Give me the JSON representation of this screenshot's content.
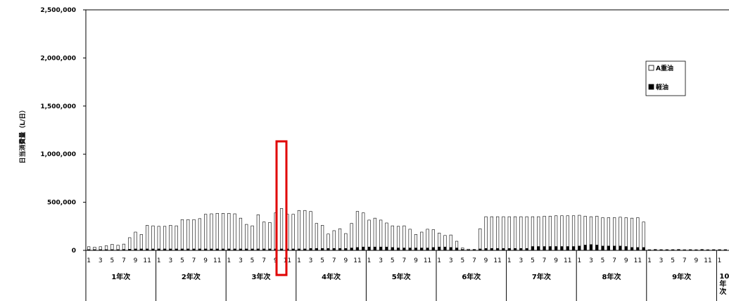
{
  "chart_data": {
    "type": "bar",
    "ylabel": "日当消費量（L/日）",
    "ylim": [
      0,
      2500000
    ],
    "yticks": [
      0,
      500000,
      1000000,
      1500000,
      2000000,
      2500000
    ],
    "ytick_labels": [
      "0",
      "500,000",
      "1,000,000",
      "1,500,000",
      "2,000,000",
      "2,500,000"
    ],
    "grid": false,
    "stacked": true,
    "legend_position": "right",
    "month_labels": [
      "1",
      "3",
      "5",
      "7",
      "9",
      "11"
    ],
    "groups": [
      "1年次",
      "2年次",
      "3年次",
      "4年次",
      "5年次",
      "6年次",
      "7年次",
      "8年次",
      "9年次",
      "10年次"
    ],
    "series": [
      {
        "name": "A重油",
        "fill": "#ffffff",
        "values": [
          30000,
          25000,
          30000,
          40000,
          55000,
          45000,
          55000,
          120000,
          175000,
          150000,
          245000,
          240000,
          235000,
          235000,
          245000,
          240000,
          305000,
          305000,
          305000,
          315000,
          360000,
          365000,
          370000,
          370000,
          370000,
          365000,
          320000,
          255000,
          240000,
          355000,
          280000,
          275000,
          375000,
          420000,
          360000,
          360000,
          400000,
          400000,
          385000,
          260000,
          240000,
          150000,
          185000,
          205000,
          155000,
          255000,
          375000,
          355000,
          280000,
          300000,
          280000,
          250000,
          225000,
          225000,
          230000,
          195000,
          140000,
          165000,
          195000,
          185000,
          145000,
          120000,
          130000,
          70000,
          15000,
          8000,
          5000,
          210000,
          330000,
          330000,
          330000,
          330000,
          330000,
          330000,
          330000,
          330000,
          310000,
          310000,
          315000,
          315000,
          320000,
          320000,
          320000,
          320000,
          320000,
          300000,
          290000,
          300000,
          295000,
          295000,
          295000,
          300000,
          300000,
          305000,
          310000,
          265000,
          2000,
          5000,
          3000,
          3000,
          3000,
          5000,
          2000,
          3000,
          2000,
          5000,
          2000,
          3000,
          3000,
          3000,
          2000
        ]
      },
      {
        "name": "軽油",
        "fill": "#000000",
        "values": [
          8000,
          8000,
          8000,
          8000,
          8000,
          8000,
          10000,
          12000,
          15000,
          15000,
          15000,
          15000,
          15000,
          15000,
          15000,
          15000,
          15000,
          15000,
          15000,
          15000,
          15000,
          15000,
          15000,
          15000,
          15000,
          15000,
          15000,
          15000,
          15000,
          15000,
          15000,
          15000,
          15000,
          15000,
          15000,
          15000,
          15000,
          15000,
          20000,
          20000,
          20000,
          20000,
          20000,
          20000,
          20000,
          25000,
          30000,
          35000,
          35000,
          35000,
          35000,
          35000,
          30000,
          25000,
          25000,
          25000,
          25000,
          25000,
          25000,
          30000,
          35000,
          35000,
          30000,
          25000,
          10000,
          5000,
          5000,
          15000,
          20000,
          20000,
          20000,
          20000,
          20000,
          20000,
          20000,
          20000,
          40000,
          40000,
          40000,
          40000,
          40000,
          40000,
          40000,
          40000,
          45000,
          55000,
          60000,
          55000,
          45000,
          45000,
          45000,
          45000,
          40000,
          30000,
          30000,
          30000,
          5000,
          5000,
          5000,
          5000,
          5000,
          5000,
          5000,
          5000,
          5000,
          5000,
          5000,
          5000,
          5000,
          5000,
          5000
        ]
      }
    ],
    "highlight": {
      "group": "3年次",
      "month": 10
    }
  }
}
